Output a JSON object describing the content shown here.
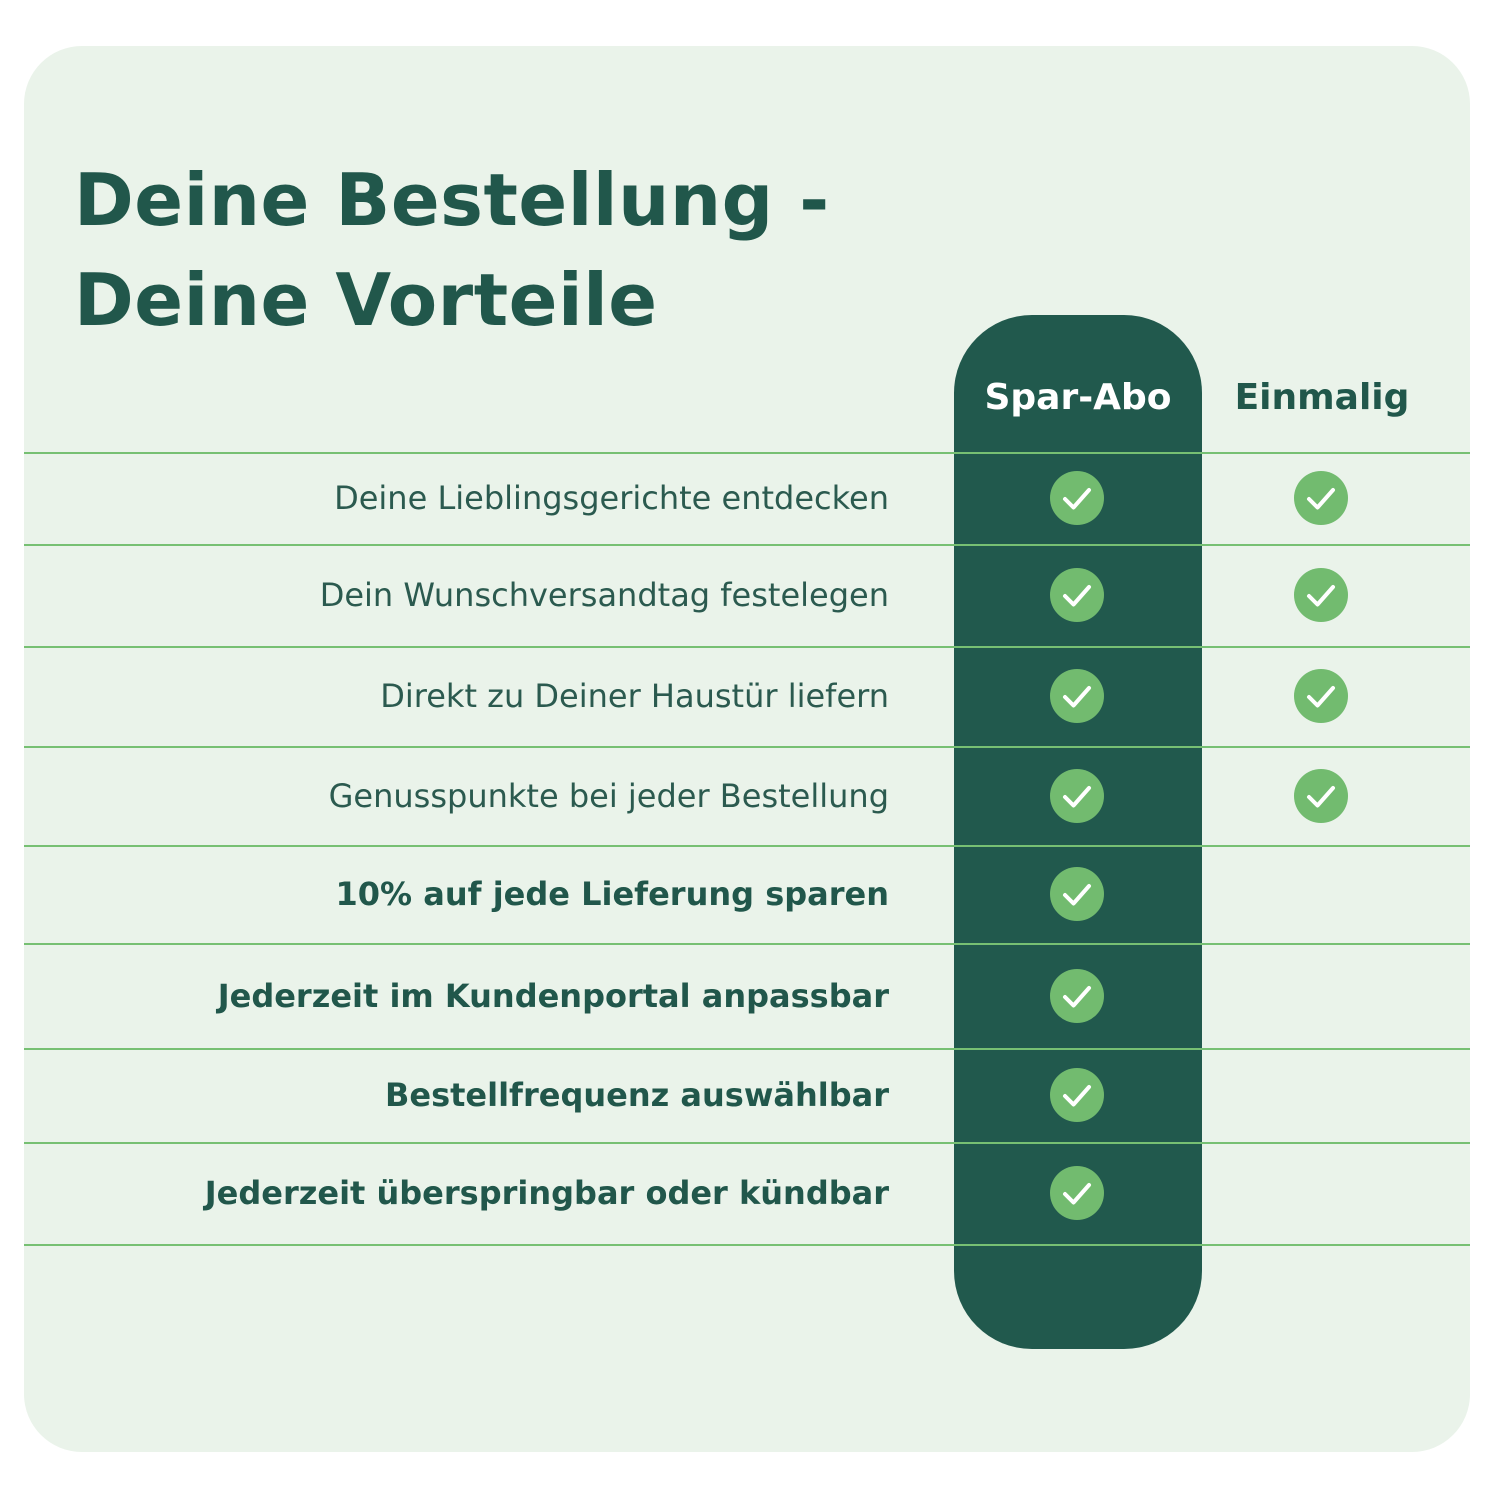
{
  "title": {
    "line1": "Deine Bestellung -",
    "line2": "Deine Vorteile"
  },
  "columns": {
    "spar_abo": "Spar-Abo",
    "einmalig": "Einmalig"
  },
  "colors": {
    "card_background": "#eaf3ea",
    "primary_dark_green": "#21594d",
    "accent_green": "#72bb6f",
    "divider_green": "#77c073"
  },
  "icons": {
    "check": "check-circle-icon"
  },
  "rows": [
    {
      "label": "Deine Lieblingsgerichte entdecken",
      "bold": false,
      "spar_abo": true,
      "einmalig": true
    },
    {
      "label": "Dein Wunschversandtag festelegen",
      "bold": false,
      "spar_abo": true,
      "einmalig": true
    },
    {
      "label": "Direkt zu Deiner Haustür liefern",
      "bold": false,
      "spar_abo": true,
      "einmalig": true
    },
    {
      "label": "Genusspunkte bei jeder Bestellung",
      "bold": false,
      "spar_abo": true,
      "einmalig": true
    },
    {
      "label": "10% auf jede Lieferung sparen",
      "bold": true,
      "spar_abo": true,
      "einmalig": false
    },
    {
      "label": "Jederzeit im Kundenportal anpassbar",
      "bold": true,
      "spar_abo": true,
      "einmalig": false
    },
    {
      "label": "Bestellfrequenz auswählbar",
      "bold": true,
      "spar_abo": true,
      "einmalig": false
    },
    {
      "label": "Jederzeit überspringbar oder kündbar ",
      "bold": true,
      "spar_abo": true,
      "einmalig": false
    }
  ]
}
